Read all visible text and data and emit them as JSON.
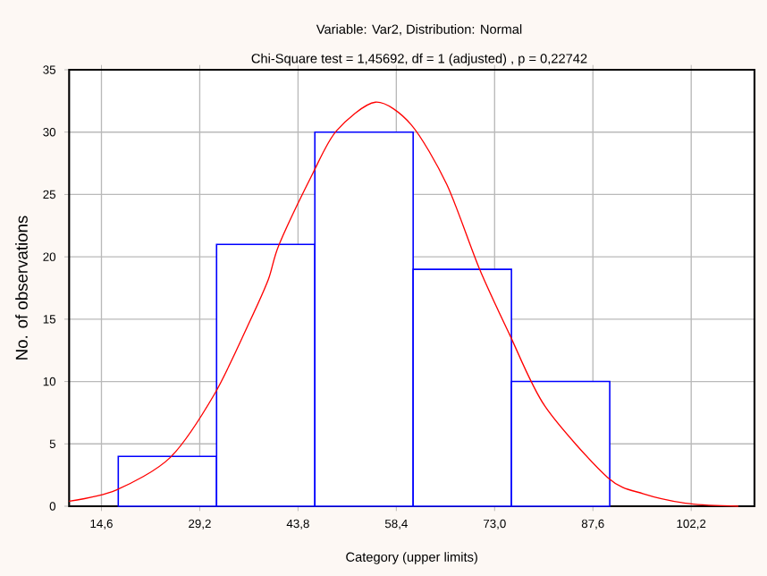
{
  "chart_data": {
    "type": "histogram",
    "title": "Variable: Var2, Distribution: Normal",
    "subtitle": "Chi-Square test = 1,45692, df = 1 (adjusted) , p = 0,22742",
    "xlabel": "Category (upper limits)",
    "ylabel": "No. of observations",
    "xlim": [
      9.8,
      111.6
    ],
    "ylim": [
      0,
      35
    ],
    "xticks": [
      {
        "value": 14.6,
        "label": "14,6"
      },
      {
        "value": 29.2,
        "label": "29,2"
      },
      {
        "value": 43.8,
        "label": "43,8"
      },
      {
        "value": 58.4,
        "label": "58,4"
      },
      {
        "value": 73.0,
        "label": "73,0"
      },
      {
        "value": 87.6,
        "label": "87,6"
      },
      {
        "value": 102.2,
        "label": "102,2"
      }
    ],
    "yticks": [
      0,
      5,
      10,
      15,
      20,
      25,
      30,
      35
    ],
    "grid": true,
    "series": [
      {
        "type": "histogram",
        "color": "#0000ff",
        "bins": [
          17.1,
          31.7,
          46.3,
          60.9,
          75.5,
          90.1
        ],
        "values": [
          4,
          21,
          30,
          19,
          10
        ]
      },
      {
        "type": "line",
        "color": "#ff0000",
        "x": [
          9.8,
          16.8,
          24.8,
          31.4,
          36.7,
          39.4,
          41.0,
          46.0,
          49.5,
          55.3,
          60.6,
          65.9,
          70.7,
          75.2,
          80.5,
          89.8,
          95.1,
          102.0,
          109.2
        ],
        "values": [
          0.4,
          1.3,
          3.9,
          9.0,
          14.9,
          18.2,
          21.0,
          26.7,
          30.1,
          32.4,
          30.6,
          25.8,
          19.1,
          13.8,
          8.0,
          2.3,
          1.0,
          0.2,
          0.0
        ]
      }
    ]
  }
}
